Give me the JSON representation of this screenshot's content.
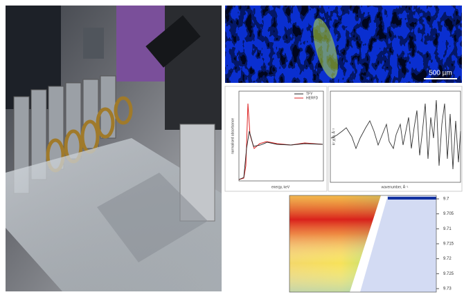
{
  "map_panel": {
    "scale_bar": "500 µm"
  },
  "xanes_panel": {
    "legend": [
      "TFY",
      "HERFD"
    ],
    "y_label": "normalised absorbance",
    "x_label": "energy, keV"
  },
  "exafs_panel": {
    "y_label": "k² χ(k), Å⁻²",
    "x_label": "wavenumber, Å⁻¹"
  },
  "heatmap_panel": {
    "y_ticks": [
      9.7,
      9.705,
      9.71,
      9.715,
      9.72,
      9.725,
      9.73
    ]
  }
}
